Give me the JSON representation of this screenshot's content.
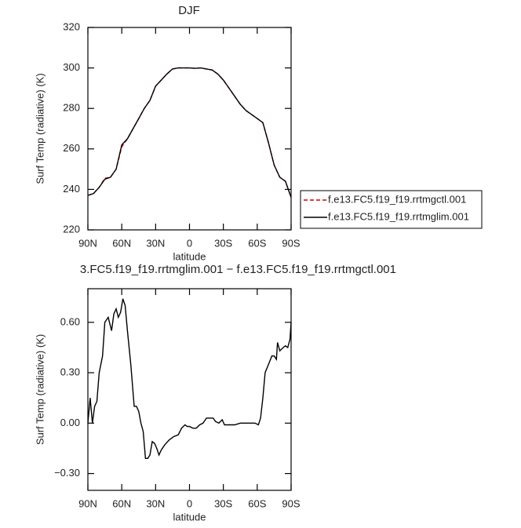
{
  "chart_data": [
    {
      "type": "line",
      "title": "DJF",
      "ylabel": "Surf Temp (radiative) (K)",
      "xlabel": "latitude",
      "x": [
        90,
        85,
        80,
        75,
        70,
        65,
        60,
        55,
        50,
        45,
        40,
        35,
        30,
        25,
        20,
        15,
        10,
        5,
        0,
        -5,
        -10,
        -15,
        -20,
        -25,
        -30,
        -35,
        -40,
        -45,
        -50,
        -55,
        -60,
        -65,
        -70,
        -75,
        -80,
        -85,
        -90
      ],
      "series": [
        {
          "name": "f.e13.FC5.f19_f19.rrtmgctl.001",
          "color": "#d00000",
          "dash": true,
          "values": [
            237,
            238,
            241,
            245.5,
            246,
            250,
            261,
            265,
            270,
            275,
            280,
            284,
            291,
            294,
            297,
            299.5,
            300,
            300,
            300,
            299.8,
            300,
            299.5,
            299,
            297,
            294,
            290,
            286,
            282,
            279,
            277,
            275,
            273,
            263,
            252,
            246,
            244,
            236
          ]
        },
        {
          "name": "f.e13.FC5.f19_f19.rrtmglim.001",
          "color": "#000000",
          "dash": false,
          "values": [
            237,
            238,
            241,
            245,
            246,
            250,
            262,
            265,
            270,
            275,
            280,
            284,
            291,
            294,
            297,
            299.5,
            300,
            300,
            300,
            299.8,
            300,
            299.5,
            299,
            297,
            294,
            290,
            286,
            282,
            279,
            277,
            275,
            273,
            263,
            252,
            246,
            244,
            236
          ]
        }
      ],
      "xlim": [
        90,
        -90
      ],
      "xticks": [
        {
          "value": 90,
          "label": "90N"
        },
        {
          "value": 60,
          "label": "60N"
        },
        {
          "value": 30,
          "label": "30N"
        },
        0,
        {
          "value": -30,
          "label": "30S"
        },
        {
          "value": -60,
          "label": "60S"
        },
        {
          "value": -90,
          "label": "90S"
        }
      ],
      "ylim": [
        220,
        320
      ],
      "yticks": [
        220,
        240,
        260,
        280,
        300,
        320
      ],
      "legend": "right"
    },
    {
      "type": "line",
      "title": "3.FC5.f19_f19.rrtmglim.001 − f.e13.FC5.f19_f19.rrtmgctl.001",
      "ylabel": "Surf Temp (radiative) (K)",
      "xlabel": "latitude",
      "x": [
        90,
        88,
        86,
        84,
        82,
        80,
        77,
        75,
        72,
        69,
        67,
        65,
        63,
        61,
        59,
        57,
        55,
        52,
        49,
        47,
        45,
        43,
        41,
        39,
        37,
        35,
        33,
        31,
        29,
        27,
        25,
        22,
        18,
        14,
        10,
        7,
        4,
        2,
        0,
        -3,
        -6,
        -9,
        -12,
        -15,
        -18,
        -21,
        -23,
        -26,
        -29,
        -31,
        -35,
        -40,
        -45,
        -50,
        -55,
        -58,
        -61,
        -63,
        -65,
        -67,
        -70,
        -73,
        -75,
        -77,
        -78,
        -80,
        -83,
        -85,
        -87,
        -89,
        -90
      ],
      "values": [
        0,
        0.15,
        0,
        0.1,
        0.13,
        0.3,
        0.4,
        0.6,
        0.63,
        0.55,
        0.65,
        0.68,
        0.63,
        0.66,
        0.74,
        0.7,
        0.55,
        0.35,
        0.1,
        0.1,
        0.07,
        0,
        -0.05,
        -0.21,
        -0.21,
        -0.19,
        -0.11,
        -0.12,
        -0.15,
        -0.19,
        -0.16,
        -0.13,
        -0.1,
        -0.08,
        -0.07,
        -0.03,
        -0.01,
        -0.02,
        -0.02,
        -0.03,
        -0.03,
        -0.01,
        0,
        0.03,
        0.03,
        0.03,
        0.01,
        0,
        0.02,
        -0.01,
        -0.01,
        -0.01,
        0,
        0,
        0,
        0,
        -0.01,
        0.03,
        0.15,
        0.3,
        0.35,
        0.4,
        0.4,
        0.38,
        0.48,
        0.43,
        0.45,
        0.46,
        0.45,
        0.5,
        0.6
      ],
      "color": "#000000",
      "xlim": [
        90,
        -90
      ],
      "xticks": [
        {
          "value": 90,
          "label": "90N"
        },
        {
          "value": 60,
          "label": "60N"
        },
        {
          "value": 30,
          "label": "30N"
        },
        0,
        {
          "value": -30,
          "label": "30S"
        },
        {
          "value": -60,
          "label": "60S"
        },
        {
          "value": -90,
          "label": "90S"
        }
      ],
      "ylim": [
        -0.4,
        0.8
      ],
      "yticks": [
        {
          "value": -0.3,
          "label": "−0.30"
        },
        {
          "value": 0,
          "label": "0.00"
        },
        {
          "value": 0.3,
          "label": "0.30"
        },
        {
          "value": 0.6,
          "label": "0.60"
        }
      ]
    }
  ]
}
